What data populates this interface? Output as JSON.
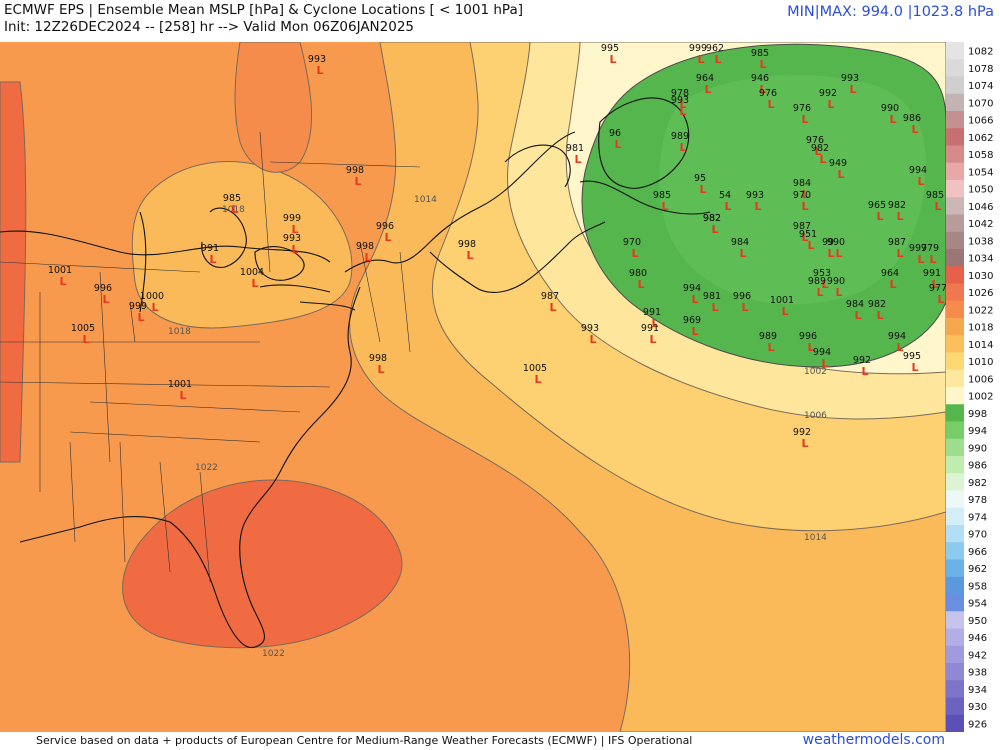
{
  "header": {
    "title_line1": "ECMWF EPS | Ensemble Mean MSLP [hPa] & Cyclone Locations [ < 1001 hPa]",
    "title_line2": "Init: 12Z26DEC2024 -- [258] hr --> Valid Mon 06Z06JAN2025",
    "minmax": "MIN|MAX: 994.0 |1023.8 hPa"
  },
  "footer": {
    "credit": "Service based on data + products of European Centre for Medium-Range Weather Forecasts (ECMWF) | IFS Operational",
    "brand": "weathermodels.com"
  },
  "legend": {
    "levels": [
      "1082",
      "1078",
      "1074",
      "1070",
      "1066",
      "1062",
      "1058",
      "1054",
      "1050",
      "1046",
      "1042",
      "1038",
      "1034",
      "1030",
      "1026",
      "1022",
      "1018",
      "1014",
      "1010",
      "1006",
      "1002",
      "998",
      "994",
      "990",
      "986",
      "982",
      "978",
      "974",
      "970",
      "966",
      "962",
      "958",
      "954",
      "950",
      "946",
      "942",
      "938",
      "934",
      "930",
      "926"
    ],
    "colors": [
      "#e4e4e4",
      "#dadada",
      "#cfcfcf",
      "#c3b3b3",
      "#c49090",
      "#c87070",
      "#d88a8a",
      "#e8a8a8",
      "#f2c2c2",
      "#ccb6b6",
      "#b89c9c",
      "#a78686",
      "#9c7676",
      "#e6604a",
      "#f07850",
      "#f58c4c",
      "#f6a84f",
      "#fbc05c",
      "#fdd874",
      "#fee8a0",
      "#fff6cc",
      "#55b64e",
      "#79cc6a",
      "#9ddd8d",
      "#c0ecb0",
      "#dcf4d4",
      "#eef8f8",
      "#d4eef8",
      "#b2def6",
      "#8ccaf0",
      "#6ab2e8",
      "#5a98df",
      "#6a8fe0",
      "#c7c4ec",
      "#b4aee6",
      "#a29ade",
      "#9088d4",
      "#7e74ca",
      "#6c62c0",
      "#5a50b6"
    ]
  },
  "isobar_labels": [
    "1018",
    "1014",
    "1018",
    "1022",
    "1022",
    "1002",
    "1006",
    "1014"
  ],
  "cyclones": [
    {
      "p": "995"
    },
    {
      "p": "999"
    },
    {
      "p": "962"
    },
    {
      "p": "985"
    },
    {
      "p": "993"
    },
    {
      "p": "964"
    },
    {
      "p": "946"
    },
    {
      "p": "976"
    },
    {
      "p": "978"
    },
    {
      "p": "992"
    },
    {
      "p": "993"
    },
    {
      "p": "976"
    },
    {
      "p": "990"
    },
    {
      "p": "986"
    },
    {
      "p": "989"
    },
    {
      "p": "96"
    },
    {
      "p": "981"
    },
    {
      "p": "976"
    },
    {
      "p": "982"
    },
    {
      "p": "949"
    },
    {
      "p": "994"
    },
    {
      "p": "95"
    },
    {
      "p": "984"
    },
    {
      "p": "985"
    },
    {
      "p": "54"
    },
    {
      "p": "993"
    },
    {
      "p": "970"
    },
    {
      "p": "982"
    },
    {
      "p": "965"
    },
    {
      "p": "982"
    },
    {
      "p": "985"
    },
    {
      "p": "982"
    },
    {
      "p": "987"
    },
    {
      "p": "951"
    },
    {
      "p": "99"
    },
    {
      "p": "990"
    },
    {
      "p": "987"
    },
    {
      "p": "997"
    },
    {
      "p": "979"
    },
    {
      "p": "970"
    },
    {
      "p": "984"
    },
    {
      "p": "980"
    },
    {
      "p": "953"
    },
    {
      "p": "964"
    },
    {
      "p": "991"
    },
    {
      "p": "989"
    },
    {
      "p": "990"
    },
    {
      "p": "977"
    },
    {
      "p": "994"
    },
    {
      "p": "981"
    },
    {
      "p": "996"
    },
    {
      "p": "1001"
    },
    {
      "p": "984"
    },
    {
      "p": "982"
    },
    {
      "p": "987"
    },
    {
      "p": "993"
    },
    {
      "p": "991"
    },
    {
      "p": "969"
    },
    {
      "p": "991"
    },
    {
      "p": "989"
    },
    {
      "p": "996"
    },
    {
      "p": "994"
    },
    {
      "p": "994"
    },
    {
      "p": "992"
    },
    {
      "p": "995"
    },
    {
      "p": "1005"
    },
    {
      "p": "992"
    },
    {
      "p": "993"
    },
    {
      "p": "998"
    },
    {
      "p": "985"
    },
    {
      "p": "999"
    },
    {
      "p": "993"
    },
    {
      "p": "996"
    },
    {
      "p": "998"
    },
    {
      "p": "998"
    },
    {
      "p": "991"
    },
    {
      "p": "1004"
    },
    {
      "p": "1001"
    },
    {
      "p": "996"
    },
    {
      "p": "999"
    },
    {
      "p": "1000"
    },
    {
      "p": "1005"
    },
    {
      "p": "1001"
    },
    {
      "p": "998"
    }
  ]
}
